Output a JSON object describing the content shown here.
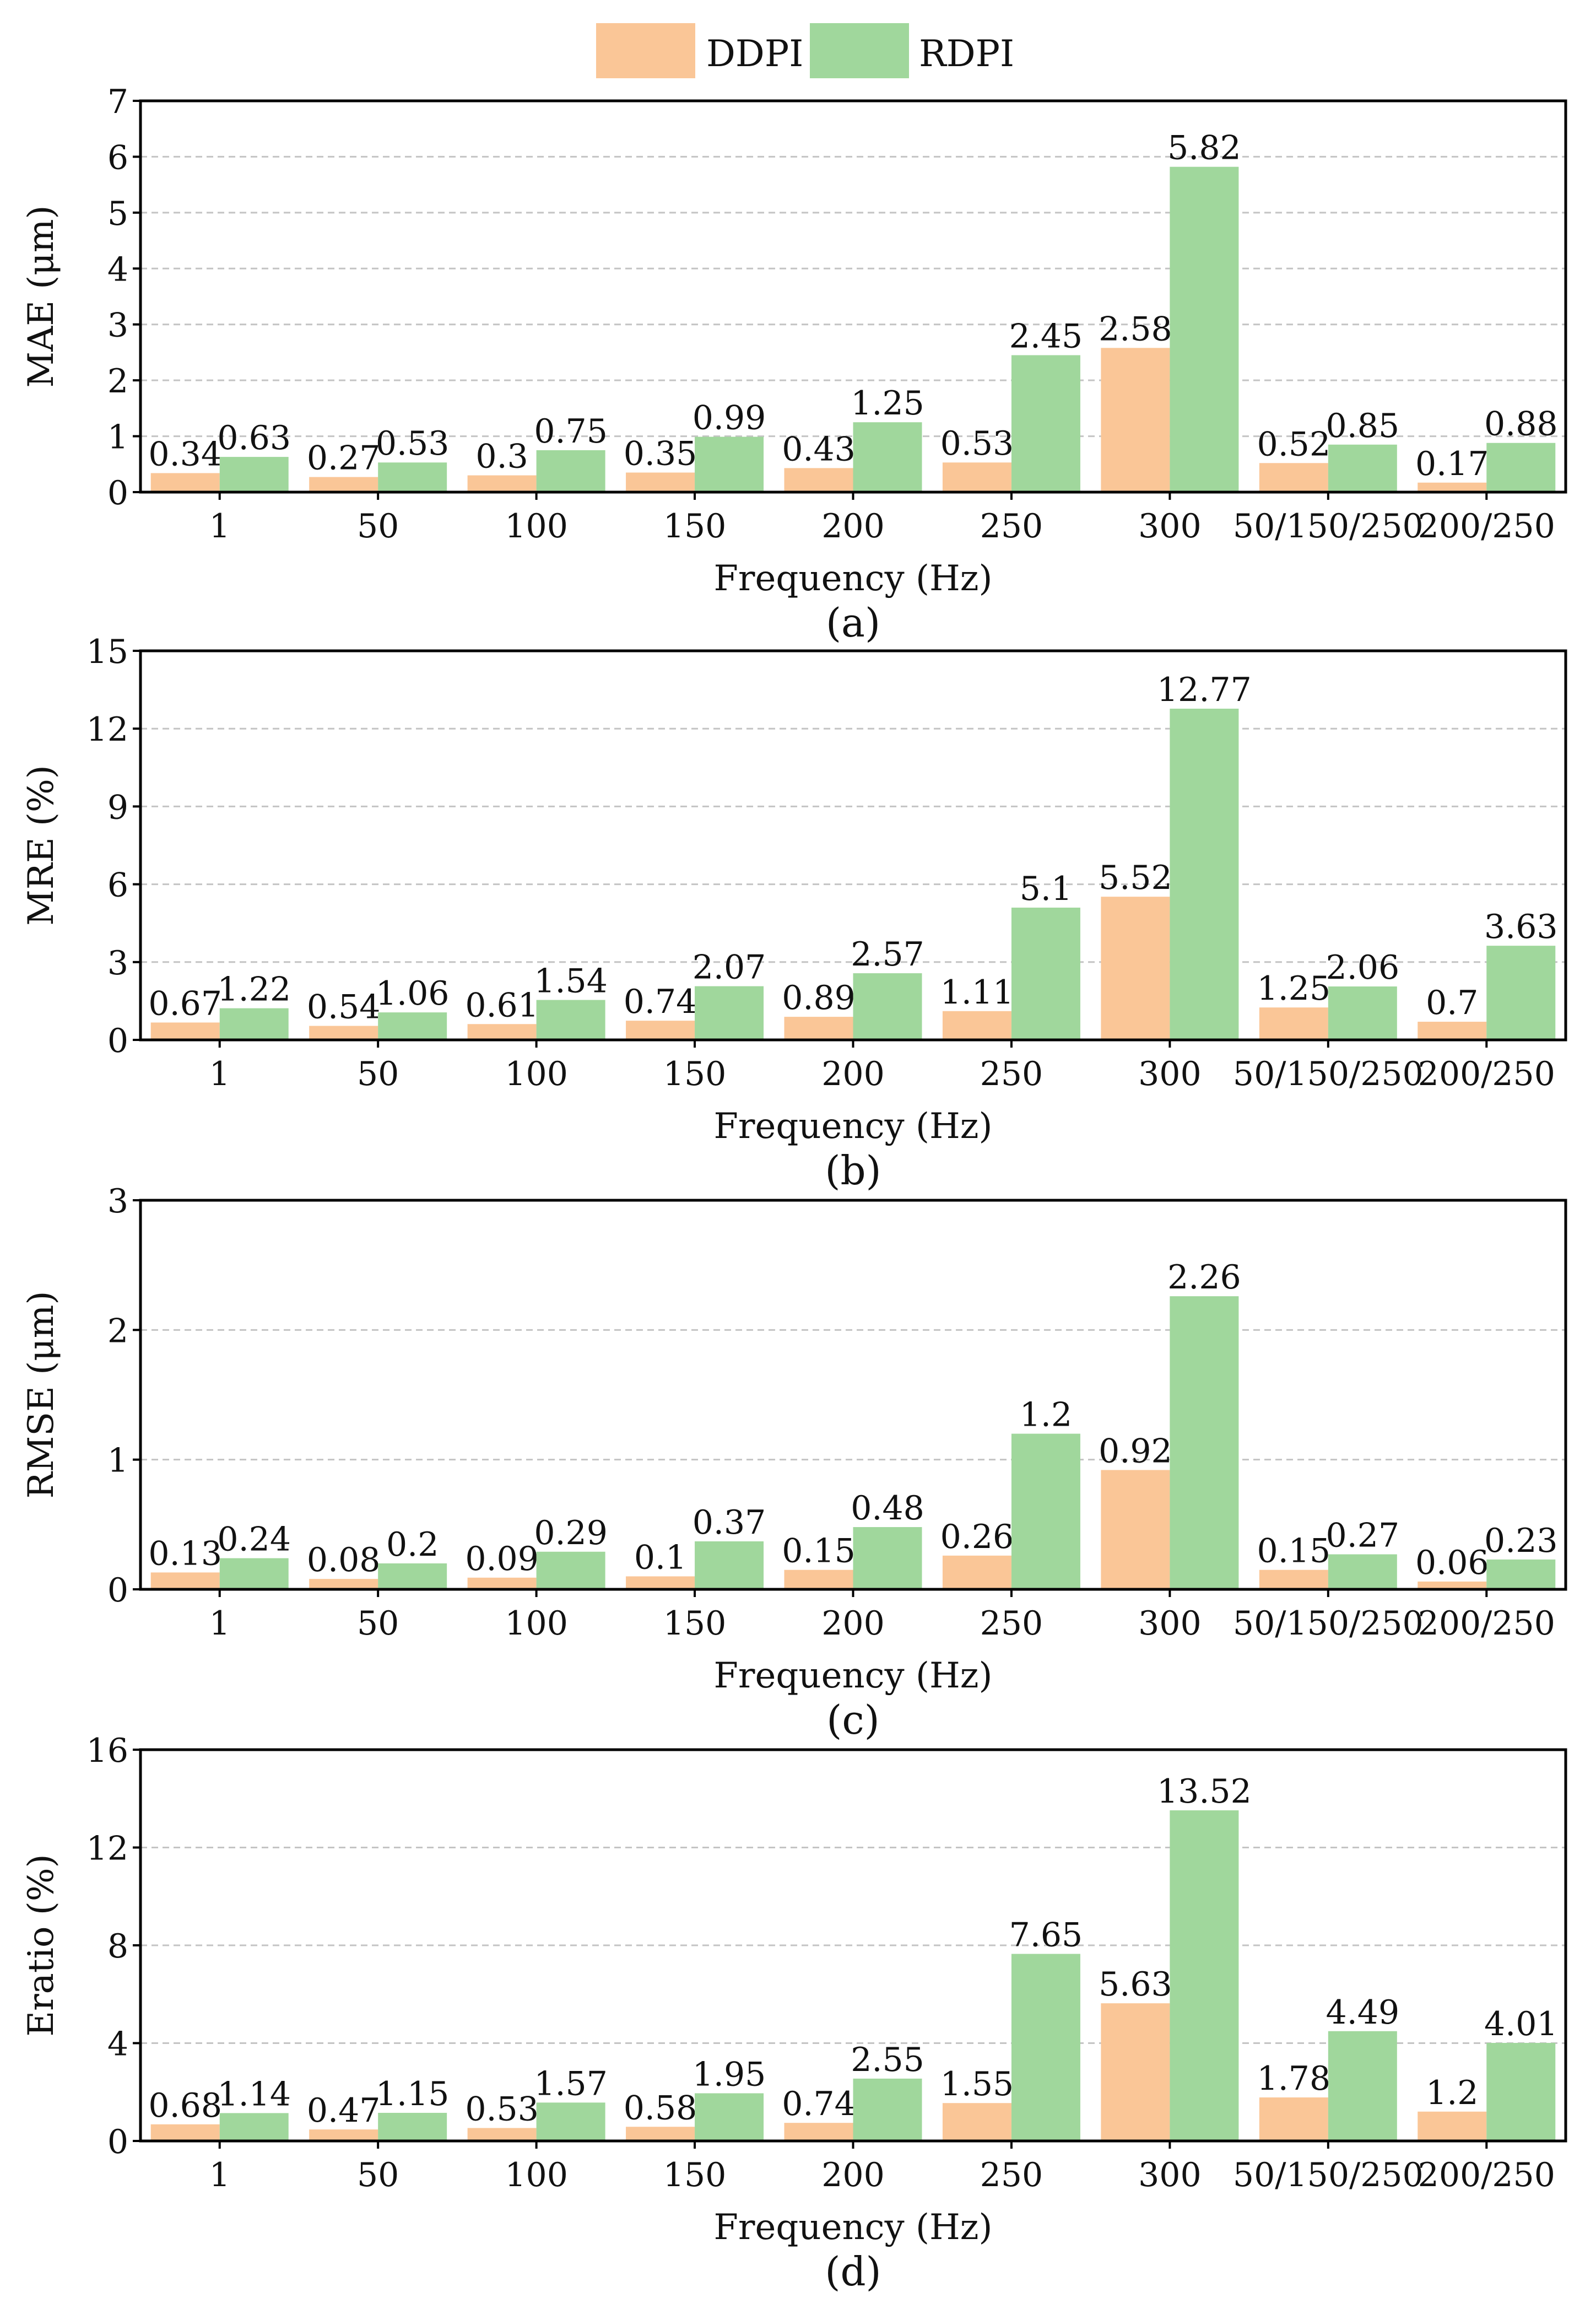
{
  "legend": {
    "items": [
      {
        "label": "DDPI",
        "color": "#fac697"
      },
      {
        "label": "RDPI",
        "color": "#a0d79c"
      }
    ]
  },
  "chart_data": [
    {
      "type": "bar",
      "panel_label": "(a)",
      "ylabel": "MAE (μm)",
      "xlabel": "Frequency (Hz)",
      "ylim": [
        0,
        7
      ],
      "yticks": [
        0,
        1,
        2,
        3,
        4,
        5,
        6,
        7
      ],
      "grid": true,
      "categories": [
        "1",
        "50",
        "100",
        "150",
        "200",
        "250",
        "300",
        "50/150/250",
        "200/250"
      ],
      "series": [
        {
          "name": "DDPI",
          "values": [
            0.34,
            0.27,
            0.3,
            0.35,
            0.43,
            0.53,
            2.58,
            0.52,
            0.17
          ]
        },
        {
          "name": "RDPI",
          "values": [
            0.63,
            0.53,
            0.75,
            0.99,
            1.25,
            2.45,
            5.82,
            0.85,
            0.88
          ]
        }
      ]
    },
    {
      "type": "bar",
      "panel_label": "(b)",
      "ylabel": "MRE (%)",
      "xlabel": "Frequency (Hz)",
      "ylim": [
        0,
        15
      ],
      "yticks": [
        0,
        3,
        6,
        9,
        12,
        15
      ],
      "grid": true,
      "categories": [
        "1",
        "50",
        "100",
        "150",
        "200",
        "250",
        "300",
        "50/150/250",
        "200/250"
      ],
      "series": [
        {
          "name": "DDPI",
          "values": [
            0.67,
            0.54,
            0.61,
            0.74,
            0.89,
            1.11,
            5.52,
            1.25,
            0.7
          ]
        },
        {
          "name": "RDPI",
          "values": [
            1.22,
            1.06,
            1.54,
            2.07,
            2.57,
            5.1,
            12.77,
            2.06,
            3.63
          ]
        }
      ]
    },
    {
      "type": "bar",
      "panel_label": "(c)",
      "ylabel": "RMSE (μm)",
      "xlabel": "Frequency (Hz)",
      "ylim": [
        0,
        3
      ],
      "yticks": [
        0,
        1,
        2,
        3
      ],
      "grid": true,
      "categories": [
        "1",
        "50",
        "100",
        "150",
        "200",
        "250",
        "300",
        "50/150/250",
        "200/250"
      ],
      "series": [
        {
          "name": "DDPI",
          "values": [
            0.13,
            0.08,
            0.09,
            0.1,
            0.15,
            0.26,
            0.92,
            0.15,
            0.06
          ]
        },
        {
          "name": "RDPI",
          "values": [
            0.24,
            0.2,
            0.29,
            0.37,
            0.48,
            1.2,
            2.26,
            0.27,
            0.23
          ]
        }
      ]
    },
    {
      "type": "bar",
      "panel_label": "(d)",
      "ylabel": "Eratio (%)",
      "xlabel": "Frequency (Hz)",
      "ylim": [
        0,
        16
      ],
      "yticks": [
        0,
        4,
        8,
        12,
        16
      ],
      "grid": true,
      "categories": [
        "1",
        "50",
        "100",
        "150",
        "200",
        "250",
        "300",
        "50/150/250",
        "200/250"
      ],
      "series": [
        {
          "name": "DDPI",
          "values": [
            0.68,
            0.47,
            0.53,
            0.58,
            0.74,
            1.55,
            5.63,
            1.78,
            1.2
          ]
        },
        {
          "name": "RDPI",
          "values": [
            1.14,
            1.15,
            1.57,
            1.95,
            2.55,
            7.65,
            13.52,
            4.49,
            4.01
          ]
        }
      ]
    }
  ]
}
